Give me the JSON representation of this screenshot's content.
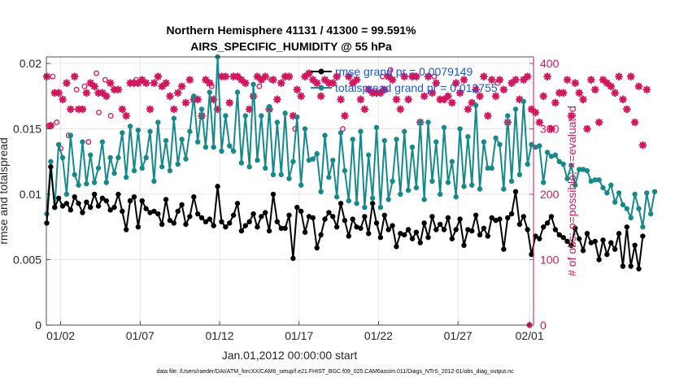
{
  "chart_data": {
    "type": "line",
    "title": "Northern Hemisphere 41131 / 41300 = 99.591%",
    "subtitle": "AIRS_SPECIFIC_HUMIDITY @ 55 hPa",
    "xlabel": "Jan.01,2012 00:00:00 start",
    "ylabel": "rmse and totalspread",
    "ylabel_right": "# of obs: o=possible; ×=evaluated",
    "footnote": "data file: /Users/raeder/DAI/ATM_forcXX/CAM6_setup/f.e21.FHIST_BGC.f09_025.CAM6assim.011/Diags_NTrS_2012-01/obs_diag_output.nc",
    "xlim": [
      0.6,
      31.25
    ],
    "ylim": [
      0,
      0.0205
    ],
    "ylim_right": [
      0,
      410
    ],
    "x_ticks": [
      {
        "x": 1.5,
        "label": "01/02"
      },
      {
        "x": 6.5,
        "label": "01/07"
      },
      {
        "x": 11.5,
        "label": "01/12"
      },
      {
        "x": 16.5,
        "label": "01/17"
      },
      {
        "x": 21.5,
        "label": "01/22"
      },
      {
        "x": 26.5,
        "label": "01/27"
      },
      {
        "x": 31.0,
        "label": "02/01"
      }
    ],
    "y_ticks": [
      {
        "v": 0,
        "label": "0"
      },
      {
        "v": 0.005,
        "label": "0.005"
      },
      {
        "v": 0.01,
        "label": "0.01"
      },
      {
        "v": 0.015,
        "label": "0.015"
      },
      {
        "v": 0.02,
        "label": "0.02"
      }
    ],
    "y_ticks_right": [
      {
        "v": 0,
        "label": "0"
      },
      {
        "v": 100,
        "label": "100"
      },
      {
        "v": 200,
        "label": "200"
      },
      {
        "v": 300,
        "label": "300"
      },
      {
        "v": 400,
        "label": "400"
      }
    ],
    "grid": true,
    "legend_position": "top-right",
    "series": [
      {
        "name": "rmse grand pr = 0.0079149",
        "axis": "left",
        "color": "#000000",
        "x_start": 0.625,
        "x_step": 0.25,
        "values": [
          0.0078,
          0.0121,
          0.009,
          0.0097,
          0.0091,
          0.0093,
          0.0088,
          0.0098,
          0.0093,
          0.0086,
          0.0094,
          0.009,
          0.01,
          0.0091,
          0.0097,
          0.0095,
          0.0088,
          0.009,
          0.01,
          0.0087,
          0.0073,
          0.0095,
          0.0098,
          0.0075,
          0.0095,
          0.0089,
          0.0086,
          0.0087,
          0.0085,
          0.0077,
          0.0096,
          0.008,
          0.0078,
          0.0087,
          0.0092,
          0.0077,
          0.0083,
          0.0098,
          0.0085,
          0.0082,
          0.0079,
          0.0081,
          0.0076,
          0.0106,
          0.0079,
          0.0075,
          0.0078,
          0.0084,
          0.0093,
          0.0072,
          0.0076,
          0.0079,
          0.0085,
          0.0075,
          0.0083,
          0.0086,
          0.0072,
          0.01,
          0.0079,
          0.0074,
          0.0074,
          0.0084,
          0.0051,
          0.009,
          0.0087,
          0.0071,
          0.0083,
          0.0082,
          0.0059,
          0.0069,
          0.0081,
          0.0086,
          0.0083,
          0.0075,
          0.0093,
          0.008,
          0.0068,
          0.0081,
          0.0075,
          0.0074,
          0.0083,
          0.007,
          0.0093,
          0.0078,
          0.0067,
          0.0084,
          0.0073,
          0.0076,
          0.006,
          0.007,
          0.0069,
          0.0073,
          0.0066,
          0.0071,
          0.0063,
          0.0078,
          0.0067,
          0.0083,
          0.0073,
          0.0077,
          0.0073,
          0.0082,
          0.0066,
          0.0073,
          0.0081,
          0.0061,
          0.0073,
          0.0072,
          0.0084,
          0.0069,
          0.0074,
          0.0068,
          0.0082,
          0.008,
          0.0081,
          0.0058,
          0.0082,
          0.0085,
          0.0102,
          0.0077,
          0.0083,
          0.0073,
          0.0054,
          0.0068,
          0.0066,
          0.0075,
          0.0078,
          0.0083,
          0.0073,
          0.0069,
          0.0067,
          0.0064,
          0.0061,
          0.0074,
          0.0066,
          0.0057,
          0.007,
          0.0063,
          0.0064,
          0.005,
          0.0065,
          0.0054,
          0.0063,
          0.0058,
          0.007,
          0.0045,
          0.0075,
          0.0045,
          0.0061,
          0.0043,
          0.0068
        ]
      },
      {
        "name": "totalspread grand pr = 0.012755",
        "axis": "left",
        "color": "#168a8a",
        "x_start": 0.625,
        "x_step": 0.25,
        "values": [
          0.0085,
          0.0125,
          0.009,
          0.0138,
          0.0128,
          0.01,
          0.0145,
          0.0115,
          0.0107,
          0.014,
          0.0108,
          0.013,
          0.0109,
          0.012,
          0.014,
          0.0109,
          0.0128,
          0.0116,
          0.0128,
          0.0147,
          0.0113,
          0.0152,
          0.0118,
          0.0149,
          0.012,
          0.0128,
          0.0148,
          0.011,
          0.0155,
          0.0121,
          0.0141,
          0.0118,
          0.0158,
          0.0123,
          0.0142,
          0.0127,
          0.0148,
          0.0175,
          0.014,
          0.0165,
          0.0136,
          0.0178,
          0.0136,
          0.0205,
          0.0133,
          0.016,
          0.0137,
          0.0133,
          0.0178,
          0.0124,
          0.016,
          0.0121,
          0.0184,
          0.0126,
          0.016,
          0.012,
          0.0167,
          0.0115,
          0.0155,
          0.0115,
          0.0162,
          0.0112,
          0.0125,
          0.0159,
          0.0107,
          0.015,
          0.0126,
          0.0127,
          0.0131,
          0.0102,
          0.0145,
          0.0113,
          0.0126,
          0.0098,
          0.0147,
          0.0118,
          0.0095,
          0.0142,
          0.0093,
          0.0148,
          0.009,
          0.013,
          0.0097,
          0.0151,
          0.009,
          0.0141,
          0.0096,
          0.011,
          0.0142,
          0.01,
          0.0148,
          0.0103,
          0.0136,
          0.0105,
          0.0155,
          0.0096,
          0.0155,
          0.011,
          0.014,
          0.01,
          0.0151,
          0.0109,
          0.0125,
          0.0098,
          0.015,
          0.0106,
          0.0144,
          0.0107,
          0.0168,
          0.0104,
          0.014,
          0.012,
          0.012,
          0.0143,
          0.0138,
          0.0104,
          0.016,
          0.011,
          0.0165,
          0.0115,
          0.0171,
          0.0123,
          0.0138,
          0.0136,
          0.0137,
          0.0109,
          0.0132,
          0.0129,
          0.013,
          0.0125,
          0.0123,
          0.0112,
          0.0122,
          0.0107,
          0.0119,
          0.0119,
          0.0118,
          0.011,
          0.0111,
          0.0111,
          0.0105,
          0.0101,
          0.0107,
          0.0094,
          0.0101,
          0.0092,
          0.0089,
          0.0082,
          0.01,
          0.0089,
          0.0075,
          0.0101,
          0.0085,
          0.0102
        ]
      },
      {
        "name": "# of obs evaluated",
        "axis": "right",
        "color": "#d6155d",
        "marker": "*",
        "x_start": 0.625,
        "x_step": 0.25,
        "values": [
          380,
          305,
          355,
          355,
          345,
          370,
          330,
          380,
          330,
          330,
          355,
          370,
          365,
          355,
          355,
          350,
          370,
          360,
          360,
          330,
          320,
          370,
          370,
          370,
          375,
          370,
          330,
          370,
          380,
          365,
          370,
          350,
          330,
          355,
          365,
          340,
          375,
          345,
          345,
          320,
          375,
          370,
          345,
          330,
          380,
          380,
          340,
          380,
          380,
          375,
          370,
          330,
          350,
          380,
          375,
          380,
          330,
          375,
          345,
          370,
          380,
          380,
          320,
          360,
          350,
          380,
          385,
          375,
          370,
          350,
          375,
          370,
          370,
          380,
          345,
          320,
          380,
          370,
          375,
          345,
          330,
          360,
          355,
          355,
          355,
          360,
          380,
          375,
          345,
          330,
          380,
          345,
          380,
          380,
          310,
          350,
          380,
          355,
          370,
          345,
          345,
          350,
          340,
          370,
          355,
          375,
          330,
          340,
          360,
          350,
          380,
          320,
          375,
          350,
          375,
          360,
          310,
          370,
          375,
          345,
          375,
          380,
          330,
          325,
          310,
          350,
          380,
          300,
          340,
          355,
          355,
          375,
          320,
          370,
          355,
          345,
          300,
          375,
          360,
          310,
          375,
          370,
          365,
          355,
          380,
          345,
          330,
          380,
          310,
          365,
          275,
          360
        ]
      },
      {
        "name": "# of obs possible",
        "axis": "right",
        "color": "#d6155d",
        "marker": "o",
        "points": [
          [
            0.75,
            305
          ],
          [
            1.0,
            380
          ],
          [
            1.25,
            310
          ],
          [
            1.5,
            270
          ],
          [
            2.0,
            290
          ],
          [
            2.5,
            360
          ],
          [
            3.0,
            365
          ],
          [
            3.25,
            280
          ],
          [
            3.75,
            385
          ],
          [
            3.9,
            325
          ],
          [
            4.3,
            375
          ],
          [
            4.65,
            320
          ],
          [
            5.0,
            360
          ],
          [
            6.25,
            375
          ],
          [
            11.0,
            365
          ],
          [
            14.0,
            365
          ],
          [
            14.75,
            375
          ],
          [
            16.25,
            300
          ],
          [
            19.25,
            300
          ],
          [
            21.75,
            380
          ],
          [
            22.25,
            390
          ],
          [
            25.0,
            380
          ],
          [
            29.0,
            370
          ]
        ]
      }
    ]
  }
}
